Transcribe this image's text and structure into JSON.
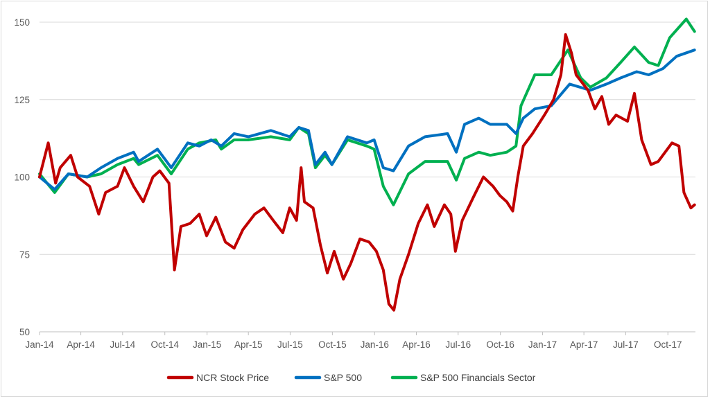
{
  "chart_data": {
    "type": "line",
    "title": "",
    "xlabel": "",
    "ylabel": "",
    "ylim": [
      50,
      150
    ],
    "y_ticks": [
      "50",
      "75",
      "100",
      "125",
      "150"
    ],
    "x_ticks": [
      "Jan-14",
      "Apr-14",
      "Jul-14",
      "Oct-14",
      "Jan-15",
      "Apr-15",
      "Jul-15",
      "Oct-15",
      "Jan-16",
      "Apr-16",
      "Jul-16",
      "Oct-16",
      "Jan-17",
      "Apr-17",
      "Jul-17",
      "Oct-17"
    ],
    "x_range": [
      "2014-01-01",
      "2017-11-30"
    ],
    "grid": "horizontal",
    "legend_position": "bottom",
    "series": [
      {
        "name": "NCR Stock Price",
        "color": "#C00000",
        "points": [
          [
            "2014-01-01",
            100
          ],
          [
            "2014-01-20",
            111
          ],
          [
            "2014-02-05",
            98
          ],
          [
            "2014-02-15",
            103
          ],
          [
            "2014-03-10",
            107
          ],
          [
            "2014-03-25",
            100
          ],
          [
            "2014-04-20",
            97
          ],
          [
            "2014-05-10",
            88
          ],
          [
            "2014-05-25",
            95
          ],
          [
            "2014-06-20",
            97
          ],
          [
            "2014-07-05",
            103
          ],
          [
            "2014-07-25",
            97
          ],
          [
            "2014-08-15",
            92
          ],
          [
            "2014-09-05",
            100
          ],
          [
            "2014-09-20",
            102
          ],
          [
            "2014-10-10",
            98
          ],
          [
            "2014-10-22",
            70
          ],
          [
            "2014-11-05",
            84
          ],
          [
            "2014-11-25",
            85
          ],
          [
            "2014-12-15",
            88
          ],
          [
            "2014-12-31",
            81
          ],
          [
            "2015-01-20",
            87
          ],
          [
            "2015-02-10",
            79
          ],
          [
            "2015-03-01",
            77
          ],
          [
            "2015-03-20",
            83
          ],
          [
            "2015-04-15",
            88
          ],
          [
            "2015-05-05",
            90
          ],
          [
            "2015-05-25",
            86
          ],
          [
            "2015-06-15",
            82
          ],
          [
            "2015-06-30",
            90
          ],
          [
            "2015-07-15",
            86
          ],
          [
            "2015-07-25",
            103
          ],
          [
            "2015-08-01",
            92
          ],
          [
            "2015-08-20",
            90
          ],
          [
            "2015-09-05",
            78
          ],
          [
            "2015-09-20",
            69
          ],
          [
            "2015-10-05",
            76
          ],
          [
            "2015-10-25",
            67
          ],
          [
            "2015-11-10",
            72
          ],
          [
            "2015-11-30",
            80
          ],
          [
            "2015-12-20",
            79
          ],
          [
            "2016-01-05",
            76
          ],
          [
            "2016-01-20",
            70
          ],
          [
            "2016-02-01",
            59
          ],
          [
            "2016-02-12",
            57
          ],
          [
            "2016-02-25",
            67
          ],
          [
            "2016-03-15",
            75
          ],
          [
            "2016-04-05",
            85
          ],
          [
            "2016-04-25",
            91
          ],
          [
            "2016-05-10",
            84
          ],
          [
            "2016-06-01",
            91
          ],
          [
            "2016-06-15",
            88
          ],
          [
            "2016-06-25",
            76
          ],
          [
            "2016-07-10",
            86
          ],
          [
            "2016-08-05",
            94
          ],
          [
            "2016-08-25",
            100
          ],
          [
            "2016-09-15",
            97
          ],
          [
            "2016-09-30",
            94
          ],
          [
            "2016-10-15",
            92
          ],
          [
            "2016-10-28",
            89
          ],
          [
            "2016-11-08",
            100
          ],
          [
            "2016-11-20",
            110
          ],
          [
            "2016-12-10",
            114
          ],
          [
            "2017-01-05",
            120
          ],
          [
            "2017-01-25",
            125
          ],
          [
            "2017-02-10",
            133
          ],
          [
            "2017-02-20",
            146
          ],
          [
            "2017-03-05",
            140
          ],
          [
            "2017-03-15",
            133
          ],
          [
            "2017-04-10",
            128
          ],
          [
            "2017-04-25",
            122
          ],
          [
            "2017-05-10",
            126
          ],
          [
            "2017-05-25",
            117
          ],
          [
            "2017-06-10",
            120
          ],
          [
            "2017-07-05",
            118
          ],
          [
            "2017-07-20",
            127
          ],
          [
            "2017-08-05",
            112
          ],
          [
            "2017-08-25",
            104
          ],
          [
            "2017-09-10",
            105
          ],
          [
            "2017-09-25",
            108
          ],
          [
            "2017-10-10",
            111
          ],
          [
            "2017-10-25",
            110
          ],
          [
            "2017-11-05",
            95
          ],
          [
            "2017-11-20",
            90
          ],
          [
            "2017-11-28",
            91
          ]
        ]
      },
      {
        "name": "S&P 500",
        "color": "#0070C0",
        "points": [
          [
            "2014-01-01",
            100
          ],
          [
            "2014-02-03",
            96
          ],
          [
            "2014-03-05",
            101
          ],
          [
            "2014-04-15",
            100
          ],
          [
            "2014-05-15",
            103
          ],
          [
            "2014-06-20",
            106
          ],
          [
            "2014-07-25",
            108
          ],
          [
            "2014-08-05",
            105
          ],
          [
            "2014-09-15",
            109
          ],
          [
            "2014-10-15",
            103
          ],
          [
            "2014-11-20",
            111
          ],
          [
            "2014-12-15",
            110
          ],
          [
            "2015-01-10",
            112
          ],
          [
            "2015-02-01",
            110
          ],
          [
            "2015-03-01",
            114
          ],
          [
            "2015-04-01",
            113
          ],
          [
            "2015-05-20",
            115
          ],
          [
            "2015-06-30",
            113
          ],
          [
            "2015-07-20",
            116
          ],
          [
            "2015-08-10",
            115
          ],
          [
            "2015-08-25",
            104
          ],
          [
            "2015-09-15",
            108
          ],
          [
            "2015-09-30",
            104
          ],
          [
            "2015-11-03",
            113
          ],
          [
            "2015-12-15",
            111
          ],
          [
            "2015-12-31",
            112
          ],
          [
            "2016-01-20",
            103
          ],
          [
            "2016-02-11",
            102
          ],
          [
            "2016-03-15",
            110
          ],
          [
            "2016-04-20",
            113
          ],
          [
            "2016-06-08",
            114
          ],
          [
            "2016-06-27",
            108
          ],
          [
            "2016-07-15",
            117
          ],
          [
            "2016-08-15",
            119
          ],
          [
            "2016-09-09",
            117
          ],
          [
            "2016-10-15",
            117
          ],
          [
            "2016-11-04",
            114
          ],
          [
            "2016-11-20",
            119
          ],
          [
            "2016-12-15",
            122
          ],
          [
            "2017-01-20",
            123
          ],
          [
            "2017-03-01",
            130
          ],
          [
            "2017-04-15",
            128
          ],
          [
            "2017-05-20",
            130
          ],
          [
            "2017-06-20",
            132
          ],
          [
            "2017-07-25",
            134
          ],
          [
            "2017-08-20",
            133
          ],
          [
            "2017-09-20",
            135
          ],
          [
            "2017-10-20",
            139
          ],
          [
            "2017-11-28",
            141
          ]
        ]
      },
      {
        "name": "S&P 500 Financials Sector",
        "color": "#00B050",
        "points": [
          [
            "2014-01-01",
            101
          ],
          [
            "2014-02-03",
            95
          ],
          [
            "2014-03-05",
            101
          ],
          [
            "2014-04-15",
            100
          ],
          [
            "2014-05-15",
            101
          ],
          [
            "2014-06-20",
            104
          ],
          [
            "2014-07-25",
            106
          ],
          [
            "2014-08-05",
            104
          ],
          [
            "2014-09-15",
            107
          ],
          [
            "2014-10-15",
            101
          ],
          [
            "2014-11-20",
            109
          ],
          [
            "2014-12-15",
            111
          ],
          [
            "2015-01-20",
            112
          ],
          [
            "2015-02-01",
            109
          ],
          [
            "2015-03-01",
            112
          ],
          [
            "2015-04-01",
            112
          ],
          [
            "2015-05-20",
            113
          ],
          [
            "2015-06-30",
            112
          ],
          [
            "2015-07-20",
            116
          ],
          [
            "2015-08-10",
            114
          ],
          [
            "2015-08-25",
            103
          ],
          [
            "2015-09-15",
            107
          ],
          [
            "2015-09-30",
            104
          ],
          [
            "2015-11-03",
            112
          ],
          [
            "2015-12-15",
            110
          ],
          [
            "2015-12-31",
            109
          ],
          [
            "2016-01-20",
            97
          ],
          [
            "2016-02-11",
            91
          ],
          [
            "2016-03-15",
            101
          ],
          [
            "2016-04-20",
            105
          ],
          [
            "2016-06-08",
            105
          ],
          [
            "2016-06-27",
            99
          ],
          [
            "2016-07-15",
            106
          ],
          [
            "2016-08-15",
            108
          ],
          [
            "2016-09-09",
            107
          ],
          [
            "2016-10-15",
            108
          ],
          [
            "2016-11-04",
            110
          ],
          [
            "2016-11-15",
            123
          ],
          [
            "2016-12-15",
            133
          ],
          [
            "2017-01-20",
            133
          ],
          [
            "2017-02-25",
            141
          ],
          [
            "2017-03-25",
            132
          ],
          [
            "2017-04-15",
            129
          ],
          [
            "2017-05-20",
            132
          ],
          [
            "2017-06-20",
            137
          ],
          [
            "2017-07-20",
            142
          ],
          [
            "2017-08-20",
            137
          ],
          [
            "2017-09-10",
            136
          ],
          [
            "2017-10-05",
            145
          ],
          [
            "2017-11-10",
            151
          ],
          [
            "2017-11-28",
            147
          ]
        ]
      }
    ]
  }
}
